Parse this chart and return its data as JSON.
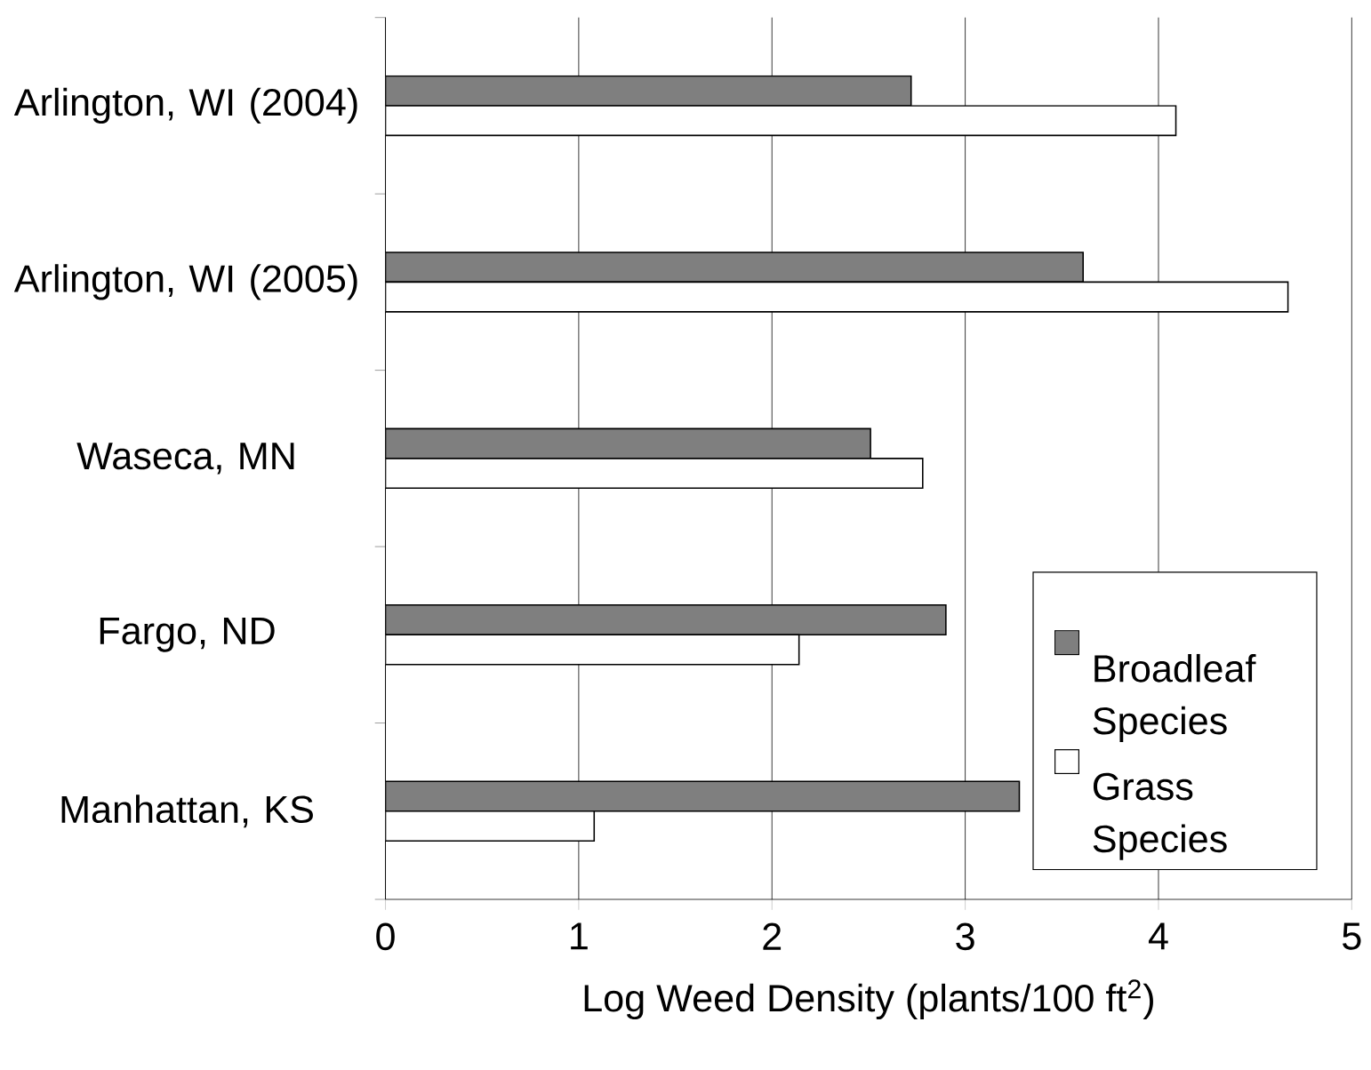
{
  "chart_data": {
    "type": "bar",
    "orientation": "horizontal",
    "categories": [
      "Arlington, WI (2004)",
      "Arlington, WI (2005)",
      "Waseca, MN",
      "Fargo, ND",
      "Manhattan, KS"
    ],
    "series": [
      {
        "name": "Broadleaf Species",
        "color": "#7f7f7f",
        "values": [
          2.72,
          3.61,
          2.51,
          2.9,
          3.28
        ]
      },
      {
        "name": "Grass Species",
        "color": "#ffffff",
        "values": [
          4.09,
          4.67,
          2.78,
          2.14,
          1.08
        ]
      }
    ],
    "xlabel": "Log Weed Density (plants/100 ft$^{2}$)",
    "xlim": [
      0,
      5
    ],
    "xticks": [
      0,
      1,
      2,
      3,
      4,
      5
    ],
    "grid": "x",
    "legend": "bottom right"
  }
}
